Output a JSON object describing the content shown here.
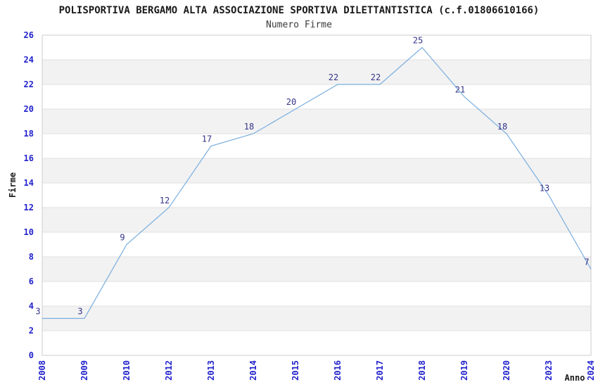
{
  "chart_data": {
    "type": "line",
    "title": "POLISPORTIVA BERGAMO ALTA ASSOCIAZIONE SPORTIVA DILETTANTISTICA (c.f.01806610166)",
    "subtitle": "Numero Firme",
    "xlabel": "Anno",
    "ylabel": "Firme",
    "categories": [
      "2008",
      "2009",
      "2010",
      "2012",
      "2013",
      "2014",
      "2015",
      "2016",
      "2017",
      "2018",
      "2019",
      "2020",
      "2023",
      "2024"
    ],
    "values": [
      3,
      3,
      9,
      12,
      17,
      18,
      20,
      22,
      22,
      25,
      21,
      18,
      13,
      7
    ],
    "ylim": [
      0,
      26
    ],
    "ytick_step": 2,
    "grid": "horizontal-bands-alternating",
    "legend": "none",
    "colors": {
      "line": "#7aaede",
      "tick_label": "#2222cc",
      "data_label": "#333388",
      "band_fill": "#f2f2f2",
      "gridline": "#e0e0e0",
      "plot_border": "#cccccc",
      "title_text": "#1a1a1a"
    }
  }
}
